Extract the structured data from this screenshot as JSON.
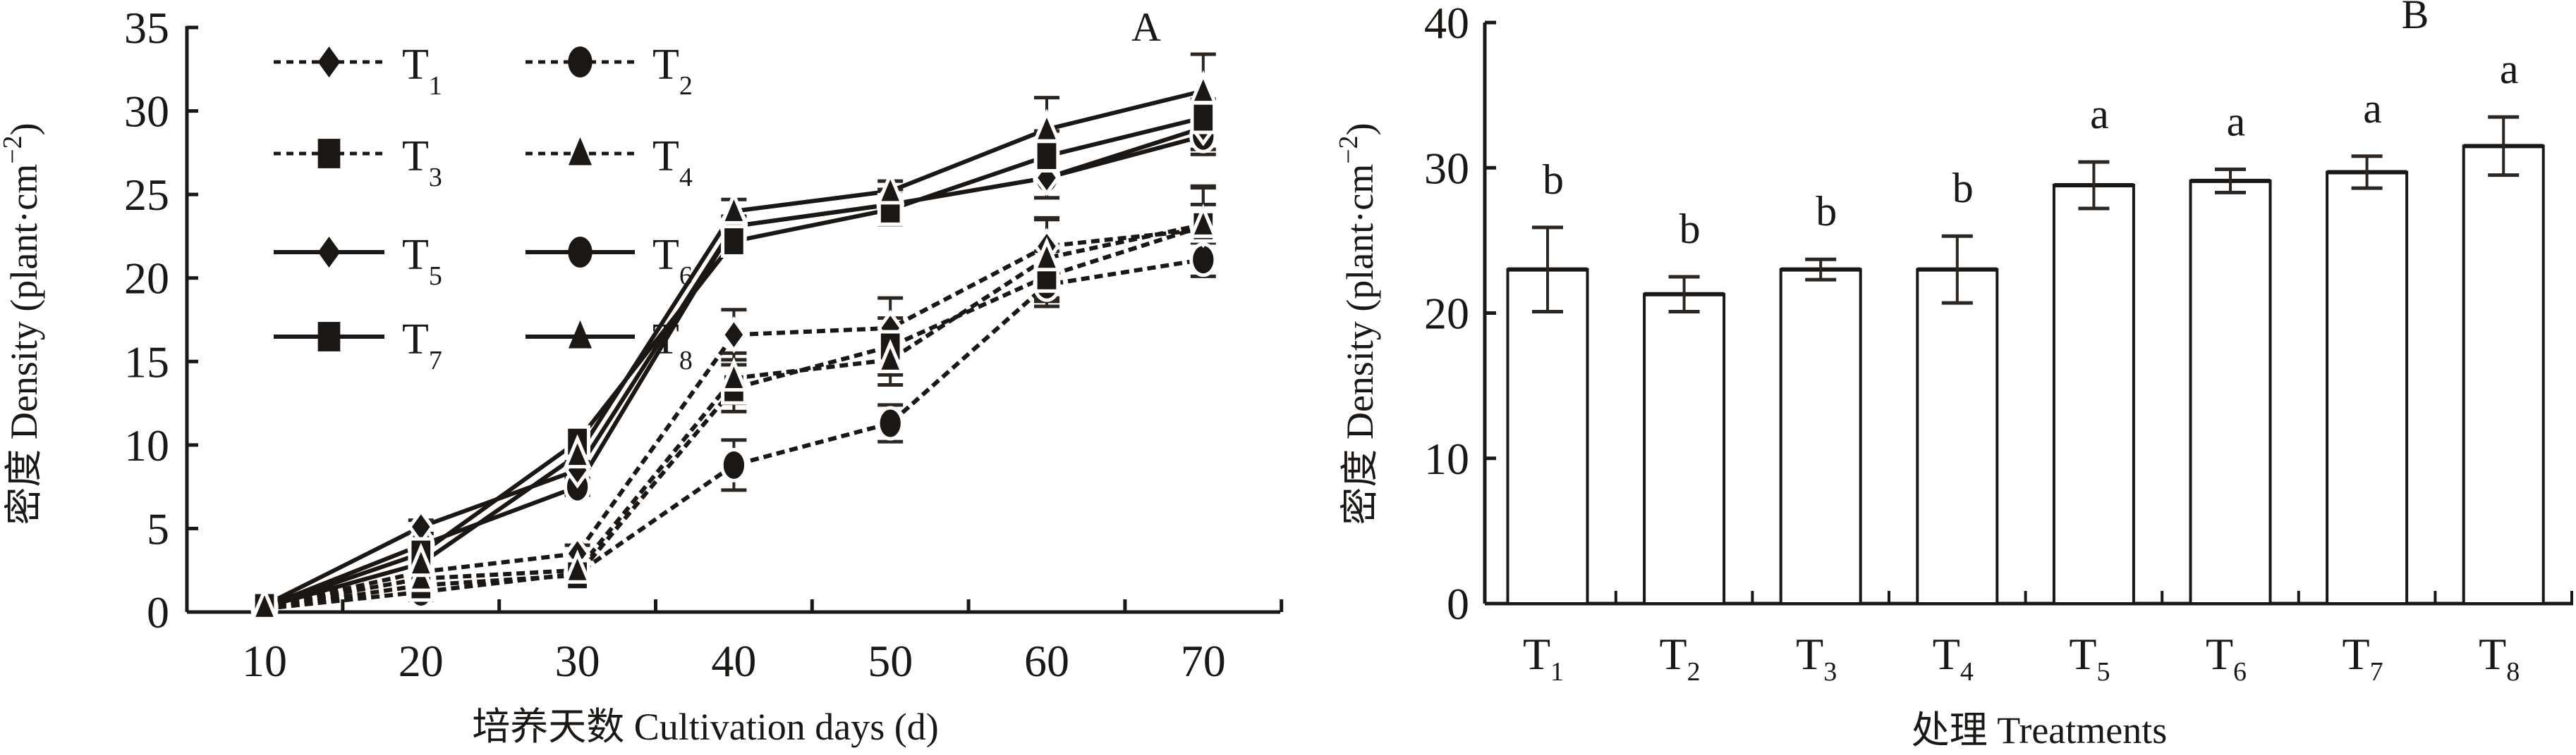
{
  "colors": {
    "ink": "#1a1714",
    "bar_fill": "#ffffff",
    "background": "#ffffff"
  },
  "chart_data": [
    {
      "type": "line",
      "panel_label": "A",
      "xlabel": "培养天数 Cultivation days (d)",
      "ylabel": "密度 Density (plant·cm⁻²)",
      "ylabel_parts": {
        "main": "密度 Density (plant·cm",
        "sup": "−2",
        "close": ")"
      },
      "x": [
        10,
        20,
        30,
        40,
        50,
        60,
        70
      ],
      "x_tick_labels": [
        "10",
        "20",
        "30",
        "40",
        "50",
        "60",
        "70"
      ],
      "y_tick_labels": [
        "0",
        "5",
        "10",
        "15",
        "20",
        "25",
        "30",
        "35"
      ],
      "ylim": [
        0,
        35
      ],
      "grid": false,
      "legend_placement": "top-left",
      "series": [
        {
          "name": "T1",
          "base": "T",
          "sub": "1",
          "marker": "diamond",
          "line": "dashed",
          "values": [
            0.3,
            2.4,
            3.5,
            16.6,
            17.0,
            21.9,
            22.9
          ],
          "errors": [
            0.3,
            0.5,
            0.5,
            1.5,
            1.8,
            1.6,
            1.5
          ]
        },
        {
          "name": "T2",
          "base": "T",
          "sub": "2",
          "marker": "circle",
          "line": "dashed",
          "values": [
            0.2,
            1.2,
            2.3,
            8.8,
            11.3,
            19.6,
            21.1
          ],
          "errors": [
            0.2,
            0.5,
            0.4,
            1.5,
            1.1,
            1.3,
            1.0
          ]
        },
        {
          "name": "T3",
          "base": "T",
          "sub": "3",
          "marker": "square",
          "line": "dashed",
          "values": [
            0.2,
            1.6,
            2.2,
            13.4,
            15.9,
            20.1,
            23.1
          ],
          "errors": [
            0.2,
            0.4,
            0.4,
            1.4,
            1.7,
            1.5,
            2.3
          ]
        },
        {
          "name": "T4",
          "base": "T",
          "sub": "4",
          "marker": "triangle",
          "line": "dashed",
          "values": [
            0.3,
            2.0,
            2.5,
            14.0,
            15.1,
            21.2,
            23.2
          ],
          "errors": [
            0.2,
            0.4,
            0.5,
            1.5,
            1.5,
            2.4,
            2.3
          ]
        },
        {
          "name": "T5",
          "base": "T",
          "sub": "5",
          "marker": "diamond",
          "line": "solid",
          "values": [
            0.4,
            5.1,
            8.5,
            23.1,
            24.4,
            26.0,
            29.0
          ],
          "errors": [
            0.3,
            0.4,
            0.5,
            0.6,
            0.9,
            1.2,
            1.6
          ]
        },
        {
          "name": "T6",
          "base": "T",
          "sub": "6",
          "marker": "circle",
          "line": "solid",
          "values": [
            0.3,
            4.0,
            7.5,
            23.1,
            24.4,
            26.0,
            28.5
          ],
          "errors": [
            0.3,
            0.4,
            0.5,
            0.6,
            0.9,
            1.2,
            0.8
          ]
        },
        {
          "name": "T7",
          "base": "T",
          "sub": "7",
          "marker": "square",
          "line": "solid",
          "values": [
            0.3,
            3.5,
            10.2,
            22.2,
            24.1,
            27.3,
            29.6
          ],
          "errors": [
            0.3,
            0.4,
            0.5,
            0.8,
            0.9,
            1.5,
            1.1
          ]
        },
        {
          "name": "T8",
          "base": "T",
          "sub": "8",
          "marker": "triangle",
          "line": "solid",
          "values": [
            0.3,
            2.9,
            9.4,
            24.0,
            25.2,
            28.9,
            31.2
          ],
          "errors": [
            0.3,
            0.4,
            0.5,
            0.7,
            0.6,
            1.9,
            2.2
          ]
        }
      ]
    },
    {
      "type": "bar",
      "panel_label": "B",
      "xlabel": "处理 Treatments",
      "ylabel": "密度 Density (plant·cm⁻²)",
      "ylabel_parts": {
        "main": "密度 Density (plant·cm",
        "sup": "−2",
        "close": ")"
      },
      "categories": [
        "T1",
        "T2",
        "T3",
        "T4",
        "T5",
        "T6",
        "T7",
        "T8"
      ],
      "category_parts": [
        {
          "base": "T",
          "sub": "1"
        },
        {
          "base": "T",
          "sub": "2"
        },
        {
          "base": "T",
          "sub": "3"
        },
        {
          "base": "T",
          "sub": "4"
        },
        {
          "base": "T",
          "sub": "5"
        },
        {
          "base": "T",
          "sub": "6"
        },
        {
          "base": "T",
          "sub": "7"
        },
        {
          "base": "T",
          "sub": "8"
        }
      ],
      "values": [
        23.0,
        21.3,
        23.0,
        23.0,
        28.8,
        29.1,
        29.7,
        31.5
      ],
      "errors": [
        2.9,
        1.2,
        0.7,
        2.3,
        1.6,
        0.8,
        1.1,
        2.0
      ],
      "significance": [
        "b",
        "b",
        "b",
        "b",
        "a",
        "a",
        "a",
        "a"
      ],
      "y_tick_labels": [
        "0",
        "10",
        "20",
        "30",
        "40"
      ],
      "ylim": [
        0,
        40
      ],
      "grid": false
    }
  ]
}
